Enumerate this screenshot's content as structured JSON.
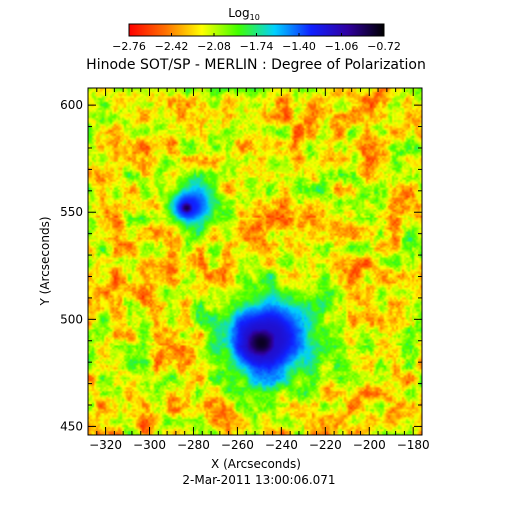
{
  "chart_data": {
    "type": "heatmap",
    "title": "Hinode SOT/SP - MERLIN : Degree of Polarization",
    "xlabel": "X (Arcseconds)",
    "ylabel": "Y (Arcseconds)",
    "footer": "2-Mar-2011 13:00:06.071",
    "xlim": [
      -328,
      -176
    ],
    "ylim": [
      446,
      608
    ],
    "x_ticks": [
      -320,
      -300,
      -280,
      -260,
      -240,
      -220,
      -200,
      -180
    ],
    "x_tick_labels": [
      "−320",
      "−300",
      "−280",
      "−260",
      "−240",
      "−220",
      "−200",
      "−180"
    ],
    "y_ticks": [
      450,
      500,
      550,
      600
    ],
    "y_tick_labels": [
      "450",
      "500",
      "550",
      "600"
    ],
    "colorbar": {
      "label_main": "Log",
      "label_sub": "10",
      "range": [
        -2.76,
        -0.72
      ],
      "ticks": [
        -2.76,
        -2.42,
        -2.08,
        -1.74,
        -1.4,
        -1.06,
        -0.72
      ],
      "tick_labels": [
        "−2.76",
        "−2.42",
        "−2.08",
        "−1.74",
        "−1.40",
        "−1.06",
        "−0.72"
      ],
      "colors": [
        "#ff0000",
        "#ff7000",
        "#ffff00",
        "#40ff00",
        "#00d0ff",
        "#1020ff",
        "#3000a0",
        "#000000"
      ]
    },
    "features": [
      {
        "name": "main sunspot umbra",
        "x": -249,
        "y": 489,
        "radius": 11,
        "value": -0.78
      },
      {
        "name": "main sunspot penumbra",
        "x": -245,
        "y": 492,
        "radius": 22,
        "value": -1.15
      },
      {
        "name": "pore umbra",
        "x": -283,
        "y": 552,
        "radius": 4,
        "value": -0.85
      },
      {
        "name": "pore penumbra",
        "x": -281,
        "y": 553,
        "radius": 11,
        "value": -1.3
      }
    ]
  }
}
